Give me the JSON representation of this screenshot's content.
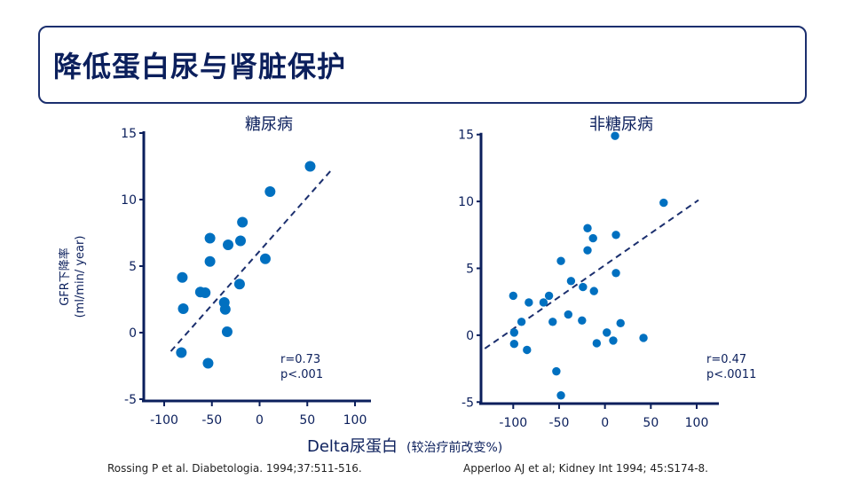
{
  "header": {
    "title": "降低蛋白尿与肾脏保护"
  },
  "axis_labels": {
    "y_line1": "GFR下降率",
    "y_line2": "(ml/min/ year)",
    "x_main": "Delta尿蛋白",
    "x_sub": "(较治疗前改变%)"
  },
  "citations": [
    "Rossing P et al. Diabetologia. 1994;37:511-516.",
    "Apperloo AJ et al; Kidney Int 1994; 45:S174-8."
  ],
  "colors": {
    "points": "#0070c0",
    "axes": "#0b1f5c",
    "trend": "#1b2f6e"
  },
  "chart_data": [
    {
      "type": "scatter",
      "title": "糖尿病",
      "xlim": [
        -120,
        120
      ],
      "ylim": [
        -5,
        15
      ],
      "xticks": [
        -100,
        -50,
        0,
        50,
        100
      ],
      "yticks": [
        -5,
        0,
        5,
        10,
        15
      ],
      "xtick_labels": [
        "-100",
        "-50",
        "0",
        "50",
        "100"
      ],
      "ytick_labels": [
        "-5",
        "0",
        "5",
        "10",
        "15"
      ],
      "stats": [
        "r=0.73",
        "p<.001"
      ],
      "points": [
        [
          -81,
          4.15
        ],
        [
          -80,
          1.8
        ],
        [
          -82,
          -1.5
        ],
        [
          -62,
          3.05
        ],
        [
          -57,
          3.0
        ],
        [
          -52,
          7.1
        ],
        [
          -52,
          5.35
        ],
        [
          -54,
          -2.3
        ],
        [
          -37,
          2.27
        ],
        [
          -36,
          1.75
        ],
        [
          -34,
          0.07
        ],
        [
          -33,
          6.6
        ],
        [
          -20,
          6.9
        ],
        [
          -18,
          8.3
        ],
        [
          -21,
          3.65
        ],
        [
          6,
          5.55
        ],
        [
          11,
          10.6
        ],
        [
          53,
          12.5
        ]
      ],
      "trend": [
        [
          -93,
          -1.4
        ],
        [
          75,
          12.2
        ]
      ]
    },
    {
      "type": "scatter",
      "title": "非糖尿病",
      "xlim": [
        -130,
        120
      ],
      "ylim": [
        -5,
        15
      ],
      "xticks": [
        -100,
        -50,
        0,
        50,
        100
      ],
      "yticks": [
        -5,
        0,
        5,
        10,
        15
      ],
      "xtick_labels": [
        "-100",
        "-50",
        "0",
        "50",
        "100"
      ],
      "ytick_labels": [
        "-5",
        "0",
        "5",
        "10",
        "15"
      ],
      "stats": [
        "r=0.47",
        "p<.0011"
      ],
      "points": [
        [
          11,
          14.9
        ],
        [
          64,
          9.9
        ],
        [
          -19,
          8.0
        ],
        [
          -13,
          7.25
        ],
        [
          12,
          7.5
        ],
        [
          -19,
          6.35
        ],
        [
          -48,
          5.55
        ],
        [
          12,
          4.65
        ],
        [
          -37,
          4.05
        ],
        [
          -24,
          3.6
        ],
        [
          -12,
          3.3
        ],
        [
          -100,
          2.95
        ],
        [
          -61,
          2.95
        ],
        [
          -83,
          2.45
        ],
        [
          -67,
          2.45
        ],
        [
          -91,
          1.0
        ],
        [
          -57,
          1.0
        ],
        [
          -40,
          1.55
        ],
        [
          -25,
          1.1
        ],
        [
          17,
          0.9
        ],
        [
          -99,
          0.2
        ],
        [
          2,
          0.2
        ],
        [
          -99,
          -0.65
        ],
        [
          -85,
          -1.1
        ],
        [
          -9,
          -0.6
        ],
        [
          9,
          -0.4
        ],
        [
          42,
          -0.2
        ],
        [
          -53,
          -2.7
        ],
        [
          -48,
          -4.5
        ]
      ],
      "trend": [
        [
          -131,
          -1.0
        ],
        [
          102,
          10.1
        ]
      ]
    }
  ]
}
